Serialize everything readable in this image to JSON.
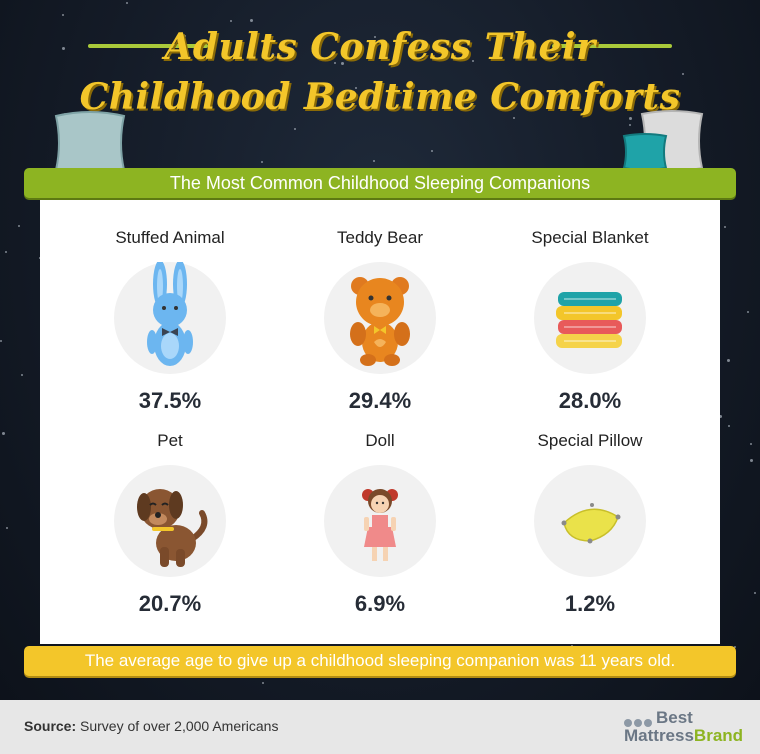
{
  "title": {
    "line1": "Adults Confess Their",
    "line2": "Childhood Bedtime Comforts"
  },
  "chart_data": {
    "type": "table",
    "title": "The Most Common Childhood Sleeping Companions",
    "categories": [
      "Stuffed Animal",
      "Teddy Bear",
      "Special Blanket",
      "Pet",
      "Doll",
      "Special Pillow"
    ],
    "values": [
      37.5,
      29.4,
      28.0,
      20.7,
      6.9,
      1.2
    ],
    "labels": [
      "37.5%",
      "29.4%",
      "28.0%",
      "20.7%",
      "6.9%",
      "1.2%"
    ],
    "icons": [
      "bunny-icon",
      "teddy-bear-icon",
      "blanket-stack-icon",
      "dog-icon",
      "doll-icon",
      "pillow-icon"
    ]
  },
  "footer_note": "The average age to give up a childhood sleeping companion was 11 years old.",
  "source": {
    "label": "Source:",
    "text": "Survey of over 2,000 Americans"
  },
  "brand": {
    "word1": "Best",
    "word2": "Mattress",
    "word3": "Brand"
  },
  "colors": {
    "title": "#f3c62a",
    "green": "#8db422",
    "yellow": "#f3c62a",
    "background": "#141b27"
  }
}
